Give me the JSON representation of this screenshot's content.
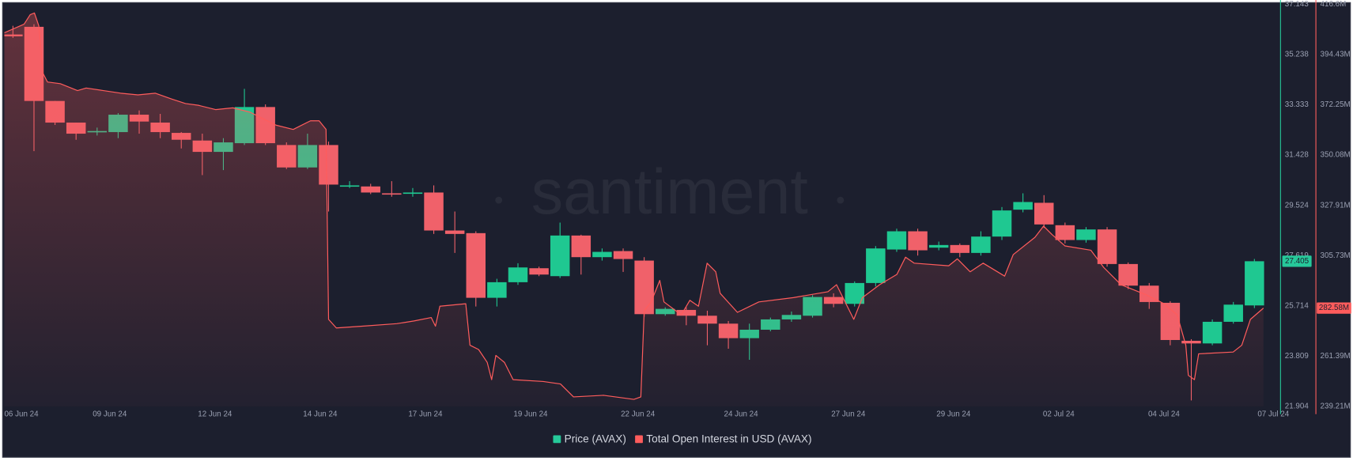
{
  "chart_data": {
    "type": "candlestick",
    "watermark": "santiment",
    "xlim": [
      -0.41,
      60.2
    ],
    "xticks": [
      {
        "value": 0.4,
        "label": "06 Jun 24"
      },
      {
        "value": 4.6,
        "label": "09 Jun 24"
      },
      {
        "value": 9.6,
        "label": "12 Jun 24"
      },
      {
        "value": 14.6,
        "label": "14 Jun 24"
      },
      {
        "value": 19.6,
        "label": "17 Jun 24"
      },
      {
        "value": 24.6,
        "label": "19 Jun 24"
      },
      {
        "value": 29.7,
        "label": "22 Jun 24"
      },
      {
        "value": 34.6,
        "label": "24 Jun 24"
      },
      {
        "value": 39.7,
        "label": "27 Jun 24"
      },
      {
        "value": 44.7,
        "label": "29 Jun 24"
      },
      {
        "value": 49.7,
        "label": "02 Jul 24"
      },
      {
        "value": 54.7,
        "label": "04 Jul 24"
      },
      {
        "value": 59.9,
        "label": "07 Jul 24"
      }
    ],
    "ylim": [
      21.904,
      37.143
    ],
    "yticks": [
      21.904,
      23.809,
      25.714,
      27.619,
      29.524,
      31.428,
      33.333,
      35.238,
      37.143
    ],
    "y2lim": [
      239.21,
      416.6
    ],
    "y2ticks": [
      {
        "value": 239.21,
        "label": "239.21M"
      },
      {
        "value": 261.39,
        "label": "261.39M"
      },
      {
        "value": 305.73,
        "label": "305.73M"
      },
      {
        "value": 327.91,
        "label": "327.91M"
      },
      {
        "value": 350.08,
        "label": "350.08M"
      },
      {
        "value": 372.25,
        "label": "372.25M"
      },
      {
        "value": 394.43,
        "label": "394.43M"
      },
      {
        "value": 416.6,
        "label": "416.6M"
      }
    ],
    "grid": false,
    "legend": "bottom",
    "series": [
      {
        "name": "Price (AVAX)",
        "type": "candlestick",
        "color": "#26c99a",
        "up_color": "#1fc891",
        "down_color": "#f0616a",
        "open": [
          36.0,
          36.29,
          33.48,
          32.66,
          32.3,
          32.3,
          32.96,
          32.66,
          32.27,
          31.98,
          31.55,
          31.88,
          33.25,
          31.81,
          30.96,
          31.81,
          30.24,
          30.24,
          29.98,
          29.98,
          30.01,
          28.57,
          28.47,
          26.02,
          26.61,
          27.14,
          26.84,
          28.38,
          27.56,
          27.79,
          27.43,
          25.4,
          25.56,
          25.34,
          25.04,
          24.49,
          24.81,
          25.2,
          25.34,
          26.05,
          25.79,
          26.58,
          27.85,
          28.54,
          27.92,
          28.02,
          27.72,
          28.34,
          29.36,
          29.62,
          28.77,
          28.21,
          28.61,
          27.3,
          26.48,
          25.83,
          24.39,
          24.29,
          25.11,
          25.73
        ],
        "high": [
          36.33,
          36.39,
          33.48,
          32.66,
          32.47,
          33.02,
          33.12,
          32.99,
          32.3,
          32.24,
          32.07,
          33.94,
          33.35,
          31.91,
          32.24,
          31.94,
          30.44,
          30.34,
          30.44,
          30.18,
          30.28,
          29.29,
          28.54,
          26.74,
          27.33,
          27.2,
          28.87,
          28.41,
          27.89,
          27.89,
          27.56,
          25.66,
          25.66,
          25.53,
          25.14,
          25.04,
          25.27,
          25.5,
          26.12,
          26.19,
          26.64,
          27.98,
          28.64,
          28.64,
          28.15,
          28.08,
          28.54,
          29.46,
          29.98,
          29.91,
          28.87,
          28.7,
          28.7,
          27.36,
          26.58,
          25.89,
          24.45,
          25.2,
          25.86,
          27.49
        ],
        "low": [
          35.87,
          31.58,
          32.57,
          32.01,
          32.17,
          32.07,
          32.24,
          32.07,
          31.68,
          30.67,
          30.86,
          31.81,
          31.81,
          30.9,
          30.9,
          29.29,
          30.18,
          29.95,
          29.85,
          29.85,
          28.44,
          27.72,
          25.69,
          25.69,
          26.51,
          26.84,
          26.77,
          26.9,
          27.43,
          27.0,
          25.3,
          25.34,
          24.98,
          24.22,
          24.09,
          23.67,
          24.75,
          25.11,
          25.27,
          25.66,
          25.69,
          26.45,
          27.76,
          27.62,
          27.82,
          27.56,
          27.62,
          28.21,
          29.26,
          28.67,
          28.08,
          28.11,
          27.2,
          26.35,
          25.6,
          24.22,
          22.13,
          24.22,
          25.04,
          25.63
        ],
        "close": [
          35.93,
          33.48,
          32.66,
          32.24,
          32.34,
          32.96,
          32.7,
          32.3,
          32.01,
          31.55,
          31.91,
          33.25,
          31.88,
          30.96,
          31.81,
          30.31,
          30.28,
          30.01,
          29.95,
          30.01,
          28.57,
          28.44,
          26.02,
          26.61,
          27.17,
          26.9,
          28.38,
          27.56,
          27.76,
          27.49,
          25.4,
          25.6,
          25.34,
          25.04,
          24.49,
          24.81,
          25.2,
          25.37,
          26.05,
          25.79,
          26.58,
          27.89,
          28.54,
          27.82,
          28.02,
          27.72,
          28.34,
          29.33,
          29.65,
          28.8,
          28.21,
          28.61,
          27.3,
          26.48,
          25.86,
          24.42,
          24.29,
          25.11,
          25.76,
          27.405
        ]
      },
      {
        "name": "Total Open Interest in USD (AVAX)",
        "type": "line",
        "axis": "y2",
        "color": "#ff5c5c",
        "current_value": {
          "value": 282.58,
          "label": "282.58M"
        },
        "x": [
          -0.41,
          0.53,
          0.82,
          1.02,
          1.23,
          1.43,
          1.64,
          2.25,
          3.07,
          3.48,
          4.3,
          5.12,
          5.94,
          6.76,
          7.58,
          8.2,
          8.81,
          9.63,
          10.45,
          11.27,
          11.68,
          12.5,
          13.32,
          14.14,
          14.55,
          14.88,
          15.0,
          15.37,
          16.6,
          18.24,
          19.06,
          19.88,
          20.08,
          20.29,
          21.52,
          21.72,
          22.13,
          22.54,
          22.75,
          22.95,
          23.36,
          23.77,
          25.2,
          26.02,
          26.64,
          28.07,
          29.51,
          29.84,
          30.0,
          30.33,
          30.74,
          30.94,
          31.76,
          32.17,
          32.58,
          32.99,
          33.4,
          33.61,
          34.43,
          35.45,
          37.09,
          38.73,
          39.14,
          39.96,
          40.37,
          41.19,
          42.01,
          42.42,
          42.83,
          44.47,
          44.88,
          45.49,
          46.11,
          47.13,
          47.54,
          48.57,
          48.98,
          49.39,
          50.0,
          51.23,
          51.84,
          52.66,
          53.89,
          54.71,
          55.33,
          55.74,
          55.86,
          56.15,
          56.35,
          57.99,
          58.4,
          58.81,
          59.43
        ],
        "values": [
          404.04,
          407.84,
          412.03,
          412.79,
          407.08,
          386.14,
          382.34,
          381.58,
          378.53,
          379.67,
          378.53,
          377.39,
          376.63,
          377.39,
          374.72,
          372.82,
          372.06,
          370.15,
          370.92,
          369.01,
          367.11,
          363.3,
          361.4,
          365.21,
          365.21,
          361.4,
          277.6,
          273.8,
          274.6,
          275.7,
          276.9,
          278.4,
          274.6,
          283.4,
          284.5,
          266.2,
          264.3,
          258.6,
          251.0,
          261.7,
          258.6,
          251.0,
          250.2,
          249.1,
          243.4,
          244.1,
          242.3,
          243.4,
          281.4,
          285.3,
          294.8,
          285.3,
          279.6,
          286.0,
          283.4,
          302.4,
          298.6,
          289.1,
          280.7,
          285.3,
          287.2,
          289.8,
          292.9,
          277.6,
          287.2,
          292.9,
          297.44,
          305.05,
          302.4,
          301.25,
          304.3,
          298.6,
          302.4,
          296.68,
          306.2,
          313.81,
          318.76,
          314.95,
          310.0,
          308.1,
          300.5,
          292.9,
          288.3,
          284.5,
          279.6,
          266.2,
          252.9,
          251.0,
          262.4,
          263.2,
          266.2,
          277.6,
          282.58
        ]
      }
    ]
  }
}
